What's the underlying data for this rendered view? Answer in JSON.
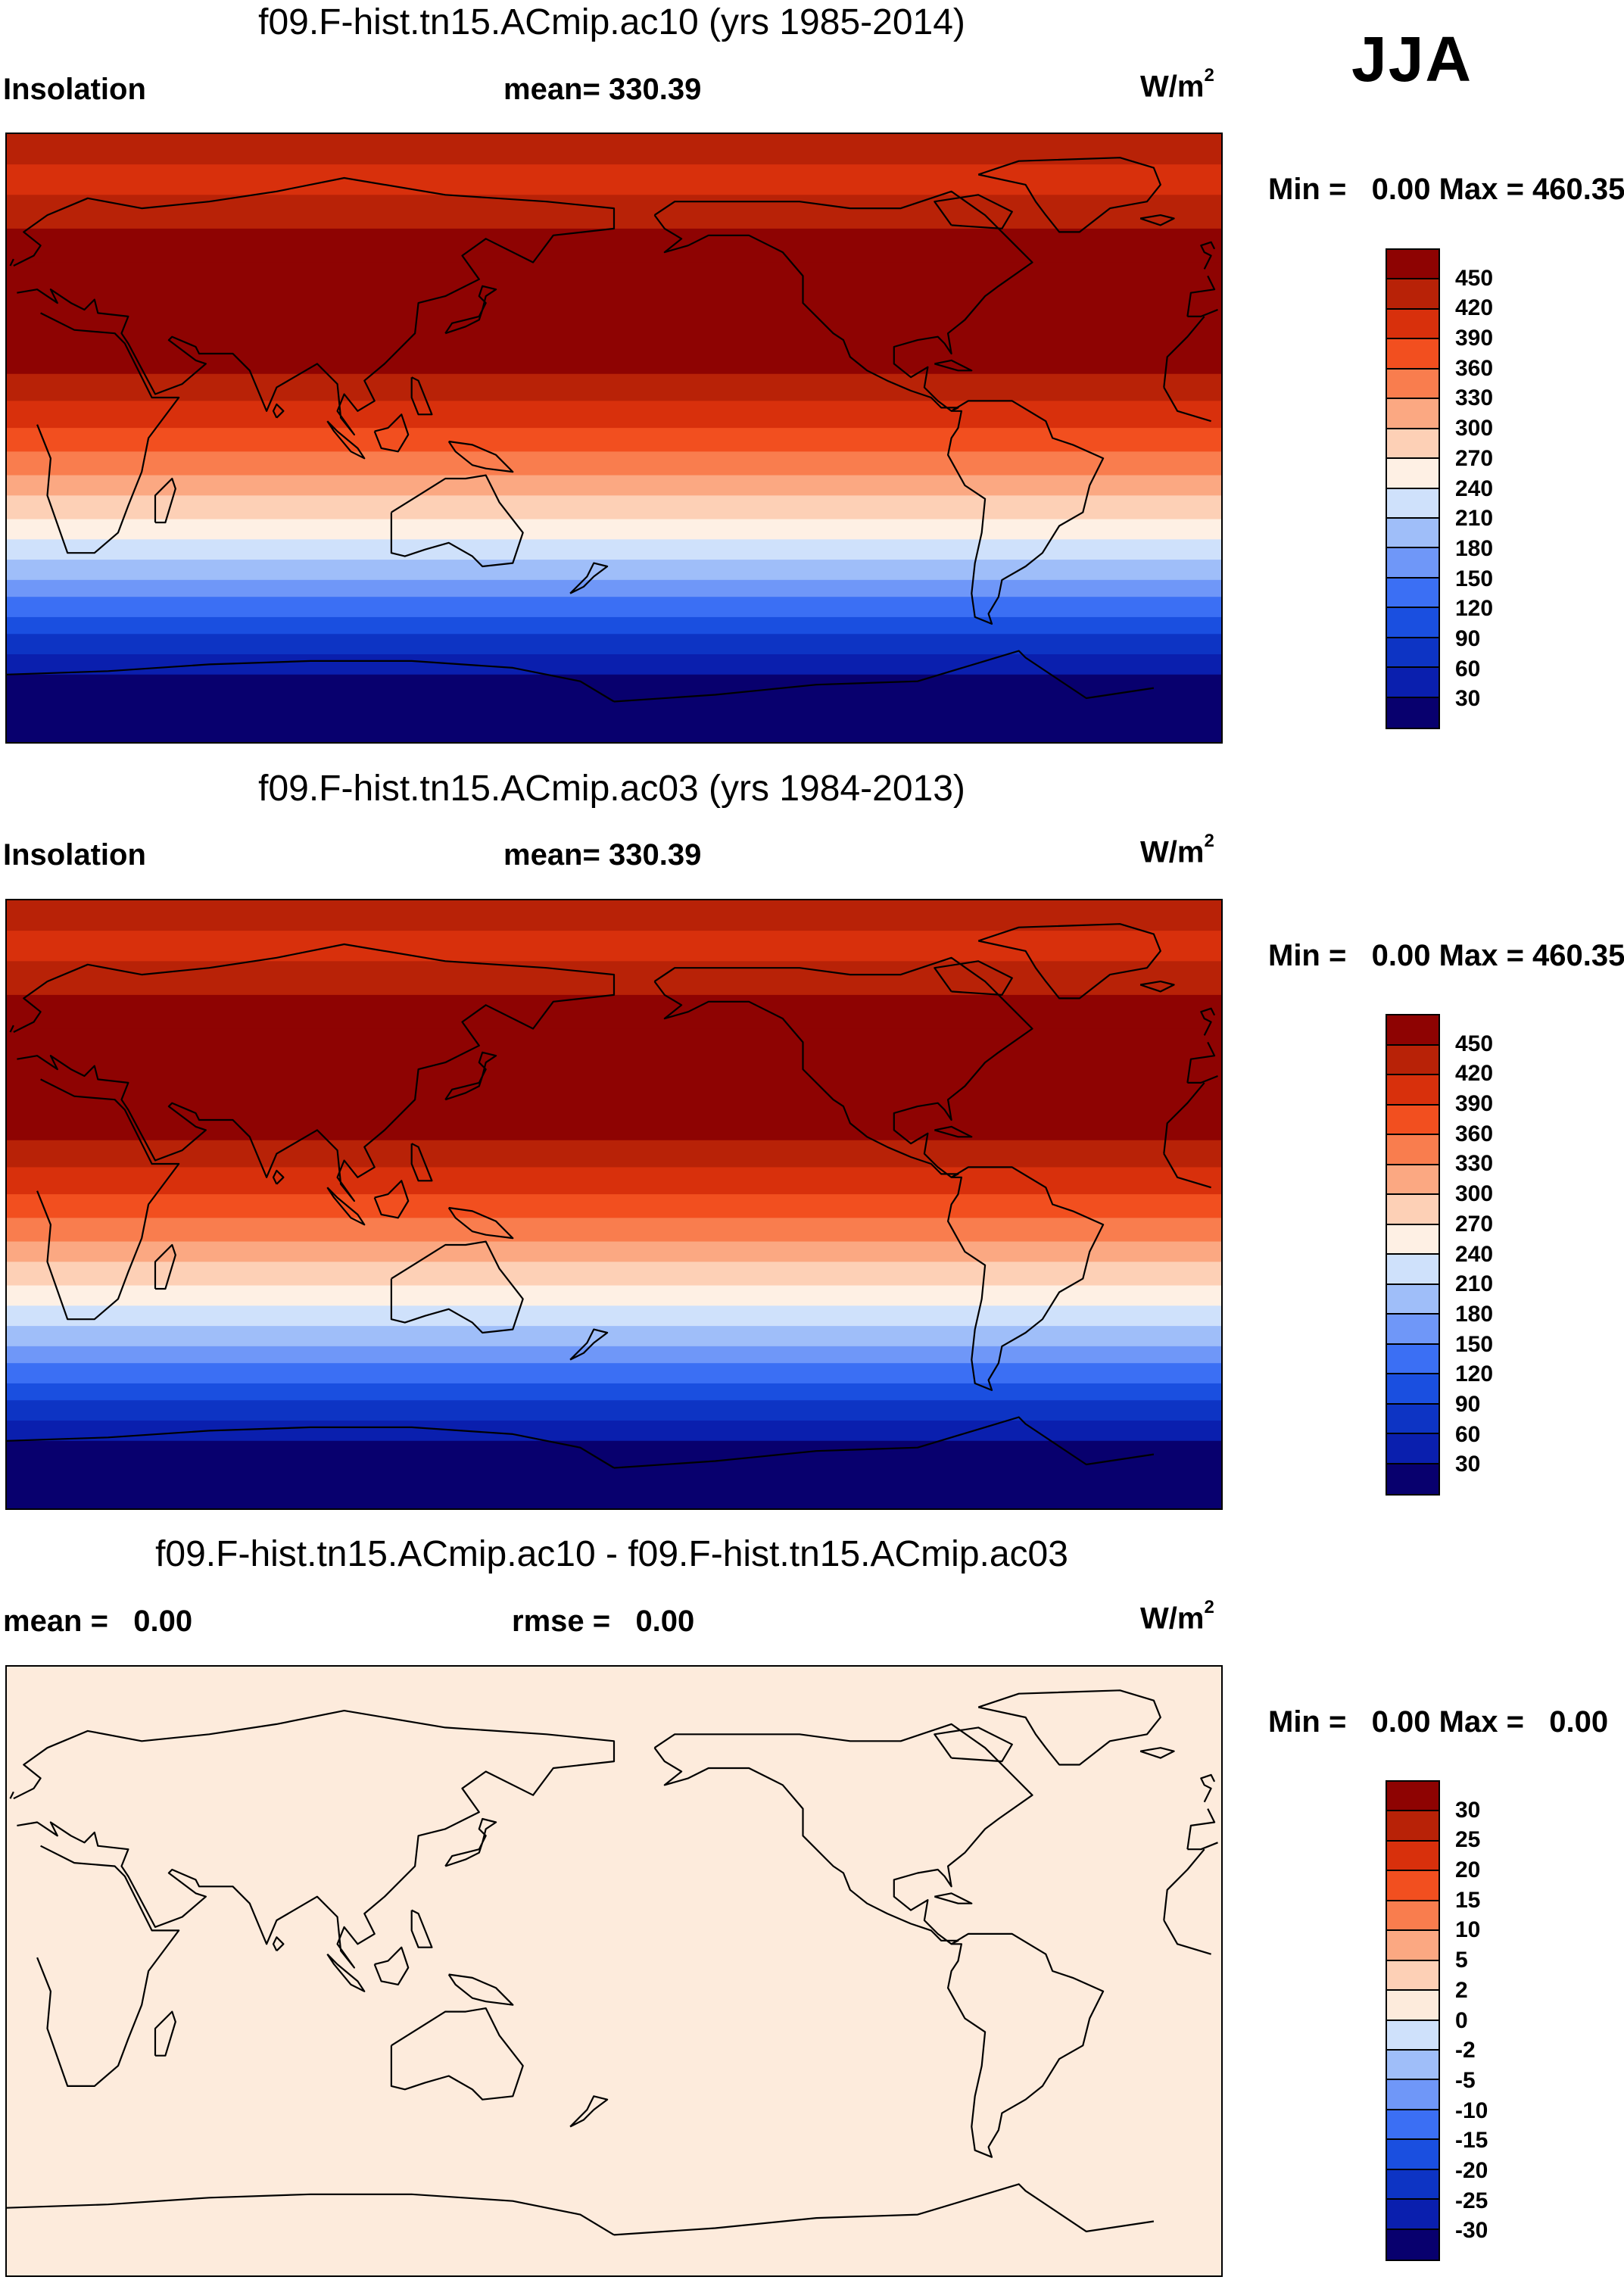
{
  "season": "JJA",
  "colors": {
    "abs": [
      "#08006e",
      "#0a1fae",
      "#0d34c4",
      "#1a4fe0",
      "#3b6ff4",
      "#6f97f8",
      "#9fbef9",
      "#cfe1fb",
      "#fef0e4",
      "#fdd0b6",
      "#fba882",
      "#f97d4e",
      "#f24f1f",
      "#d8300c",
      "#b82207",
      "#8e0302"
    ],
    "diff": [
      "#08006e",
      "#0a1fae",
      "#0d34c4",
      "#1a4fe0",
      "#3b6ff4",
      "#6f97f8",
      "#9fbef9",
      "#cfe1fb",
      "#fdebdc",
      "#fdd0b6",
      "#fba882",
      "#f97d4e",
      "#f24f1f",
      "#d8300c",
      "#b82207",
      "#8e0302"
    ]
  },
  "panels": [
    {
      "title": "f09.F-hist.tn15.ACmip.ac10 (yrs 1985-2014)",
      "left_label": "Insolation",
      "center_label": "mean= 330.39",
      "units": "W/m",
      "units_exp": "2",
      "minmax": "Min =   0.00 Max = 460.35",
      "cbar_labels": [
        "450",
        "420",
        "390",
        "360",
        "330",
        "300",
        "270",
        "240",
        "210",
        "180",
        "150",
        "120",
        "90",
        "60",
        "30"
      ],
      "field": "insolation"
    },
    {
      "title": "f09.F-hist.tn15.ACmip.ac03 (yrs 1984-2013)",
      "left_label": "Insolation",
      "center_label": "mean= 330.39",
      "units": "W/m",
      "units_exp": "2",
      "minmax": "Min =   0.00 Max = 460.35",
      "cbar_labels": [
        "450",
        "420",
        "390",
        "360",
        "330",
        "300",
        "270",
        "240",
        "210",
        "180",
        "150",
        "120",
        "90",
        "60",
        "30"
      ],
      "field": "insolation"
    },
    {
      "title": "f09.F-hist.tn15.ACmip.ac10 - f09.F-hist.tn15.ACmip.ac03",
      "left_label": "mean =   0.00",
      "center_label": "rmse =   0.00",
      "units": "W/m",
      "units_exp": "2",
      "minmax": "Min =   0.00 Max =   0.00",
      "cbar_labels": [
        "30",
        "25",
        "20",
        "15",
        "10",
        "5",
        "2",
        "0",
        "-2",
        "-5",
        "-10",
        "-15",
        "-20",
        "-25",
        "-30"
      ],
      "field": "difference"
    }
  ],
  "insolation_bands": [
    {
      "lat_from": 90,
      "lat_to": 81,
      "level": 14
    },
    {
      "lat_from": 81,
      "lat_to": 72,
      "level": 13
    },
    {
      "lat_from": 72,
      "lat_to": 62,
      "level": 14
    },
    {
      "lat_from": 62,
      "lat_to": 52,
      "level": 15
    },
    {
      "lat_from": 52,
      "lat_to": 19,
      "level": 15
    },
    {
      "lat_from": 19,
      "lat_to": 11,
      "level": 14
    },
    {
      "lat_from": 11,
      "lat_to": 3,
      "level": 13
    },
    {
      "lat_from": 3,
      "lat_to": -4,
      "level": 12
    },
    {
      "lat_from": -4,
      "lat_to": -11,
      "level": 11
    },
    {
      "lat_from": -11,
      "lat_to": -17,
      "level": 10
    },
    {
      "lat_from": -17,
      "lat_to": -24,
      "level": 9
    },
    {
      "lat_from": -24,
      "lat_to": -30,
      "level": 8
    },
    {
      "lat_from": -30,
      "lat_to": -36,
      "level": 7
    },
    {
      "lat_from": -36,
      "lat_to": -42,
      "level": 6
    },
    {
      "lat_from": -42,
      "lat_to": -47,
      "level": 5
    },
    {
      "lat_from": -47,
      "lat_to": -53,
      "level": 4
    },
    {
      "lat_from": -53,
      "lat_to": -58,
      "level": 3
    },
    {
      "lat_from": -58,
      "lat_to": -64,
      "level": 2
    },
    {
      "lat_from": -64,
      "lat_to": -70,
      "level": 1
    },
    {
      "lat_from": -70,
      "lat_to": -90,
      "level": 0
    }
  ],
  "difference_level": 8
}
